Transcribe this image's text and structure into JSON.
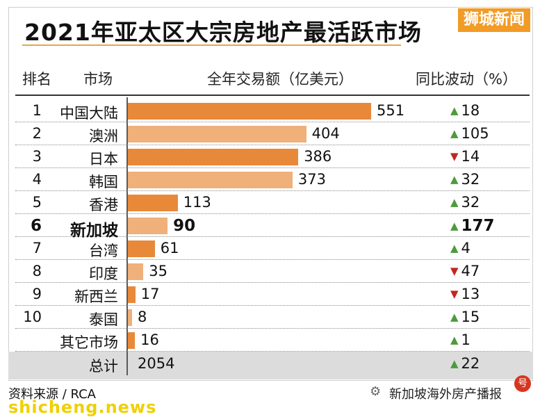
{
  "title": "2021年亚太区大宗房地产最活跃市场",
  "brand": "狮城新闻",
  "headers": {
    "rank": "排名",
    "market": "市场",
    "amount": "全年交易额（亿美元）",
    "change": "同比波动（%）"
  },
  "chart_data": {
    "type": "bar",
    "orientation": "horizontal",
    "title": "2021年亚太区大宗房地产最活跃市场",
    "categories": [
      "中国大陆",
      "澳洲",
      "日本",
      "韩国",
      "香港",
      "新加坡",
      "台湾",
      "印度",
      "新西兰",
      "泰国",
      "其它市场"
    ],
    "ranks": [
      "1",
      "2",
      "3",
      "4",
      "5",
      "6",
      "7",
      "8",
      "9",
      "10",
      ""
    ],
    "values": [
      551,
      404,
      386,
      373,
      113,
      90,
      61,
      35,
      17,
      8,
      16
    ],
    "change": [
      {
        "dir": "up",
        "value": "18"
      },
      {
        "dir": "up",
        "value": "105"
      },
      {
        "dir": "down",
        "value": "14"
      },
      {
        "dir": "up",
        "value": "32"
      },
      {
        "dir": "up",
        "value": "32"
      },
      {
        "dir": "up",
        "value": "177"
      },
      {
        "dir": "up",
        "value": "4"
      },
      {
        "dir": "down",
        "value": "47"
      },
      {
        "dir": "down",
        "value": "13"
      },
      {
        "dir": "up",
        "value": "15"
      },
      {
        "dir": "up",
        "value": "1"
      }
    ],
    "highlight_index": 5,
    "bar_colors": [
      "#e8893a",
      "#efb07a"
    ],
    "up_color": "#4e9a3c",
    "down_color": "#c0281e",
    "xlim": [
      0,
      551
    ]
  },
  "total": {
    "label": "总计",
    "value": "2054",
    "change_dir": "up",
    "change": "22"
  },
  "source": "资料来源 / RCA",
  "watermark_left": "shicheng.news",
  "watermark_right": "新加坡海外房产播报",
  "watermark_badge": "号"
}
